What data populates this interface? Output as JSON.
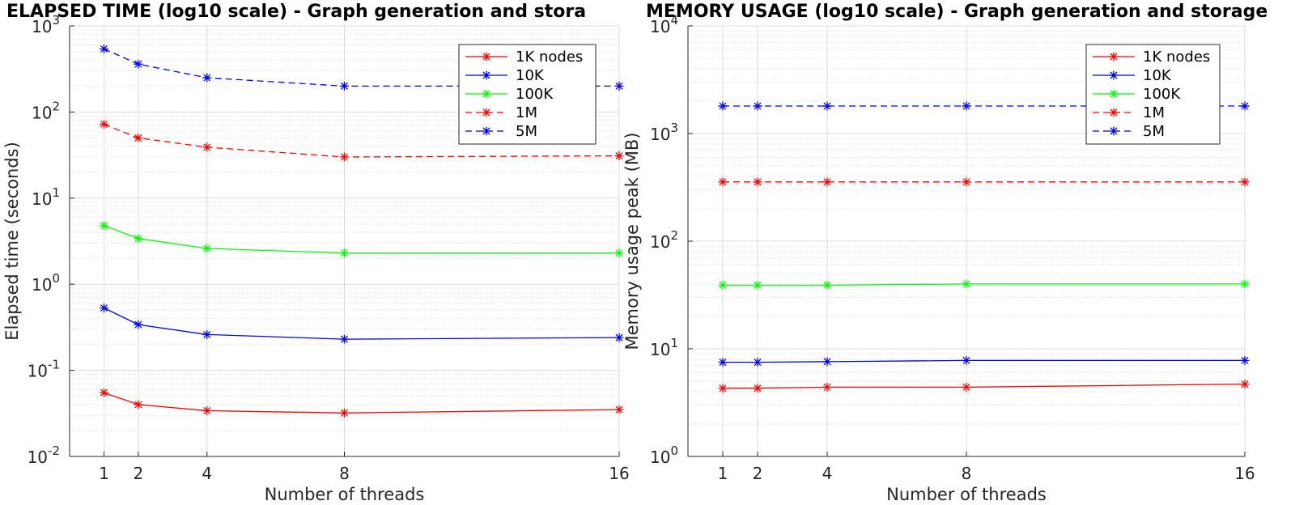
{
  "chart_data": [
    {
      "type": "line",
      "title": "ELAPSED TIME (log10 scale) - Graph generation and stora",
      "xlabel": "Number of threads",
      "ylabel": "Elapsed time (seconds)",
      "yscale": "log",
      "xlim": [
        0,
        16
      ],
      "ylim": [
        0.01,
        1000
      ],
      "x": [
        1,
        2,
        4,
        8,
        16
      ],
      "x_ticks": [
        "1",
        "2",
        "4",
        "8",
        "16"
      ],
      "y_ticks": [
        {
          "base": "10",
          "exp": "-2"
        },
        {
          "base": "10",
          "exp": "-1"
        },
        {
          "base": "10",
          "exp": "0"
        },
        {
          "base": "10",
          "exp": "1"
        },
        {
          "base": "10",
          "exp": "2"
        },
        {
          "base": "10",
          "exp": "3"
        }
      ],
      "grid": true,
      "legend_position": "top-right",
      "series": [
        {
          "name": "1K nodes",
          "color": "#ff0000",
          "style": "solid",
          "values": [
            0.055,
            0.04,
            0.034,
            0.032,
            0.035
          ]
        },
        {
          "name": "10K",
          "color": "#0000ff",
          "style": "solid",
          "values": [
            0.53,
            0.34,
            0.26,
            0.23,
            0.24
          ]
        },
        {
          "name": "100K",
          "color": "#00ff00",
          "style": "solid",
          "values": [
            4.8,
            3.4,
            2.6,
            2.3,
            2.3
          ]
        },
        {
          "name": "1M",
          "color": "#ff0000",
          "style": "dashed",
          "values": [
            72,
            50,
            39,
            30,
            31
          ]
        },
        {
          "name": "5M",
          "color": "#0000ff",
          "style": "dashed",
          "values": [
            540,
            360,
            250,
            200,
            200
          ]
        }
      ]
    },
    {
      "type": "line",
      "title": "MEMORY USAGE (log10 scale) - Graph generation and storage",
      "xlabel": "Number of threads",
      "ylabel": "Memory usage peak (MB)",
      "yscale": "log",
      "xlim": [
        0,
        16
      ],
      "ylim": [
        1,
        10000
      ],
      "x": [
        1,
        2,
        4,
        8,
        16
      ],
      "x_ticks": [
        "1",
        "2",
        "4",
        "8",
        "16"
      ],
      "y_ticks": [
        {
          "base": "10",
          "exp": "0"
        },
        {
          "base": "10",
          "exp": "1"
        },
        {
          "base": "10",
          "exp": "2"
        },
        {
          "base": "10",
          "exp": "3"
        },
        {
          "base": "10",
          "exp": "4"
        }
      ],
      "grid": true,
      "legend_position": "top-right",
      "series": [
        {
          "name": "1K nodes",
          "color": "#ff0000",
          "style": "solid",
          "values": [
            4.3,
            4.3,
            4.4,
            4.4,
            4.7
          ]
        },
        {
          "name": "10K",
          "color": "#0000ff",
          "style": "solid",
          "values": [
            7.5,
            7.5,
            7.6,
            7.8,
            7.8
          ]
        },
        {
          "name": "100K",
          "color": "#00ff00",
          "style": "solid",
          "values": [
            39,
            39,
            39,
            40,
            40
          ]
        },
        {
          "name": "1M",
          "color": "#ff0000",
          "style": "dashed",
          "values": [
            355,
            355,
            355,
            355,
            355
          ]
        },
        {
          "name": "5M",
          "color": "#0000ff",
          "style": "dashed",
          "values": [
            1800,
            1800,
            1800,
            1800,
            1800
          ]
        }
      ]
    }
  ]
}
